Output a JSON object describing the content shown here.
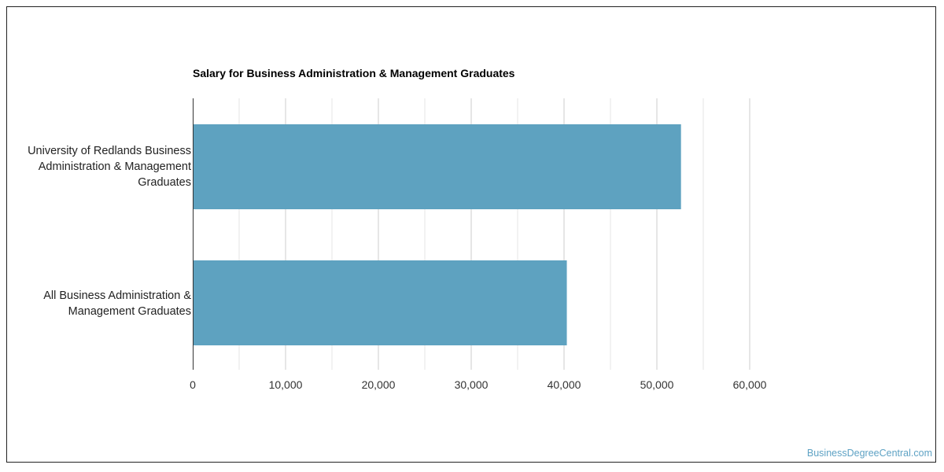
{
  "chart_data": {
    "type": "bar",
    "orientation": "horizontal",
    "title": "Salary for Business Administration & Management Graduates",
    "categories": [
      "University of Redlands Business Administration & Management Graduates",
      "All Business Administration & Management Graduates"
    ],
    "values": [
      52600,
      40300
    ],
    "xlabel": "",
    "ylabel": "",
    "xlim": [
      0,
      60000
    ],
    "ticks": [
      0,
      10000,
      20000,
      30000,
      40000,
      50000,
      60000
    ],
    "tick_labels": [
      "0",
      "10,000",
      "20,000",
      "30,000",
      "40,000",
      "50,000",
      "60,000"
    ],
    "grid": true,
    "bar_color": "#5ea2c0"
  },
  "watermark": "BusinessDegreeCentral.com"
}
